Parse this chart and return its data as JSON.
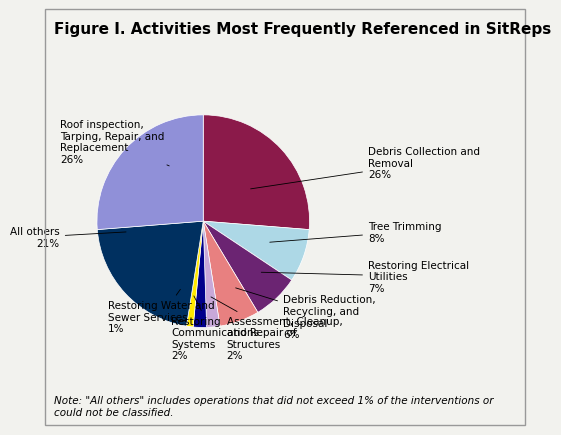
{
  "title": "Figure I. Activities Most Frequently Referenced in SitReps",
  "slices": [
    {
      "label": "Debris Collection and\nRemoval\n26%",
      "value": 26,
      "color": "#8B1A4A"
    },
    {
      "label": "Tree Trimming\n8%",
      "value": 8,
      "color": "#ADD8E6"
    },
    {
      "label": "Restoring Electrical\nUtilities\n7%",
      "value": 7,
      "color": "#6B2472"
    },
    {
      "label": "Debris Reduction,\nRecycling, and\nDisposal\n6%",
      "value": 6,
      "color": "#E88080"
    },
    {
      "label": "Assessment, Cleanup,\nand Repair of\nStructures\n2%",
      "value": 2,
      "color": "#C8A8D8"
    },
    {
      "label": "Restoring\nCommunications\nSystems\n2%",
      "value": 2,
      "color": "#00008B"
    },
    {
      "label": "Restoring Water and\nSewer Services\n1%",
      "value": 1,
      "color": "#FFE800"
    },
    {
      "label": "All others\n21%",
      "value": 21,
      "color": "#003060"
    },
    {
      "label": "Roof inspection,\nTarping, Repair, and\nReplacement\n26%",
      "value": 26,
      "color": "#9090D8"
    }
  ],
  "note": "Note: \"All others\" includes operations that did not exceed 1% of the interventions or\ncould not be classified.",
  "background_color": "#F2F2EE",
  "title_fontsize": 11,
  "label_fontsize": 7.5,
  "note_fontsize": 7.5
}
